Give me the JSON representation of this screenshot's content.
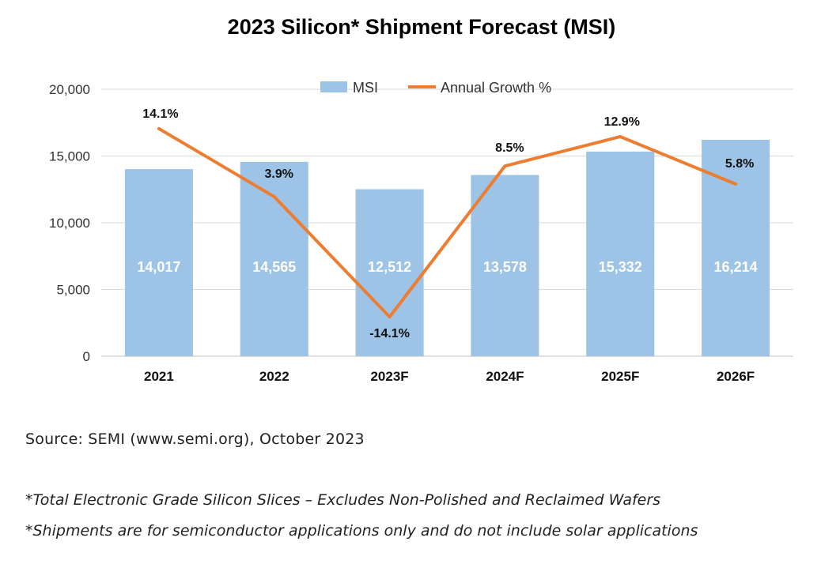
{
  "source": "Source: SEMI (www.semi.org), October 2023",
  "footnotes": [
    "*Total Electronic Grade Silicon Slices – Excludes Non-Polished and Reclaimed Wafers",
    "*Shipments are for semiconductor applications only and do not include solar applications"
  ],
  "colors": {
    "bar": "#9DC3E6",
    "line": "#ED7D31",
    "grid": "#d9d9d9"
  },
  "chart_data": {
    "type": "bar",
    "title": "2023 Silicon* Shipment Forecast (MSI)",
    "categories": [
      "2021",
      "2022",
      "2023F",
      "2024F",
      "2025F",
      "2026F"
    ],
    "ylim": [
      0,
      20000
    ],
    "yticks": [
      0,
      5000,
      10000,
      15000,
      20000
    ],
    "ytick_labels": [
      "0",
      "5,000",
      "10,000",
      "15,000",
      "20,000"
    ],
    "grid": true,
    "legend_position": "top",
    "series": [
      {
        "name": "MSI",
        "type": "bar",
        "values": [
          14017,
          14565,
          12512,
          13578,
          15332,
          16214
        ],
        "labels": [
          "14,017",
          "14,565",
          "12,512",
          "13,578",
          "15,332",
          "16,214"
        ]
      },
      {
        "name": "Annual Growth %",
        "type": "line",
        "values": [
          14.1,
          3.9,
          -14.1,
          8.5,
          12.9,
          5.8
        ],
        "labels": [
          "14.1%",
          "3.9%",
          "-14.1%",
          "8.5%",
          "12.9%",
          "5.8%"
        ],
        "secondary_ylim": [
          -20,
          20
        ]
      }
    ]
  }
}
